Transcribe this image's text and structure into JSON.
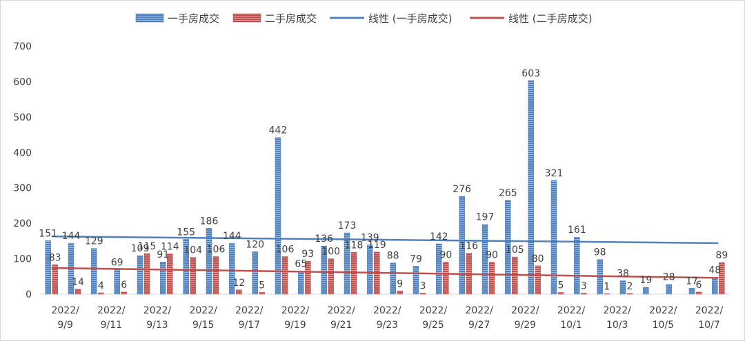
{
  "chart_data": {
    "type": "bar",
    "categories": [
      "2022/9/9",
      "2022/9/10",
      "2022/9/11",
      "2022/9/12",
      "2022/9/13",
      "2022/9/14",
      "2022/9/15",
      "2022/9/16",
      "2022/9/17",
      "2022/9/18",
      "2022/9/19",
      "2022/9/20",
      "2022/9/21",
      "2022/9/22",
      "2022/9/23",
      "2022/9/24",
      "2022/9/25",
      "2022/9/26",
      "2022/9/27",
      "2022/9/28",
      "2022/9/29",
      "2022/9/30",
      "2022/10/1",
      "2022/10/2",
      "2022/10/3",
      "2022/10/4",
      "2022/10/5",
      "2022/10/6",
      "2022/10/7",
      "2022/10/8"
    ],
    "tick_labels": [
      {
        "line1": "2022/",
        "line2": "9/9"
      },
      {
        "line1": "2022/",
        "line2": "9/11"
      },
      {
        "line1": "2022/",
        "line2": "9/13"
      },
      {
        "line1": "2022/",
        "line2": "9/15"
      },
      {
        "line1": "2022/",
        "line2": "9/17"
      },
      {
        "line1": "2022/",
        "line2": "9/19"
      },
      {
        "line1": "2022/",
        "line2": "9/21"
      },
      {
        "line1": "2022/",
        "line2": "9/23"
      },
      {
        "line1": "2022/",
        "line2": "9/25"
      },
      {
        "line1": "2022/",
        "line2": "9/27"
      },
      {
        "line1": "2022/",
        "line2": "9/29"
      },
      {
        "line1": "2022/",
        "line2": "10/1"
      },
      {
        "line1": "2022/",
        "line2": "10/3"
      },
      {
        "line1": "2022/",
        "line2": "10/5"
      },
      {
        "line1": "2022/",
        "line2": "10/7"
      }
    ],
    "series": [
      {
        "name": "一手房成交",
        "color": "#4f81bd",
        "values": [
          151,
          144,
          129,
          69,
          109,
          91,
          155,
          186,
          144,
          120,
          442,
          65,
          136,
          173,
          139,
          88,
          79,
          142,
          276,
          197,
          265,
          603,
          321,
          161,
          98,
          38,
          19,
          28,
          17,
          48
        ]
      },
      {
        "name": "二手房成交",
        "color": "#c0504d",
        "values": [
          83,
          14,
          4,
          6,
          115,
          114,
          104,
          106,
          12,
          5,
          106,
          93,
          100,
          118,
          119,
          9,
          3,
          90,
          116,
          90,
          105,
          80,
          5,
          3,
          1,
          2,
          null,
          null,
          6,
          89
        ]
      }
    ],
    "trendlines": [
      {
        "name": "线性 (一手房成交)",
        "color": "#4f81bd",
        "start": 163,
        "end": 144
      },
      {
        "name": "线性 (二手房成交)",
        "color": "#c0504d",
        "start": 74,
        "end": 46
      }
    ],
    "y_ticks": [
      "0",
      "100",
      "200",
      "300",
      "400",
      "500",
      "600",
      "700"
    ],
    "ylim": [
      0,
      700
    ],
    "legend_position": "top",
    "grid": false,
    "title": "",
    "xlabel": "",
    "ylabel": ""
  }
}
